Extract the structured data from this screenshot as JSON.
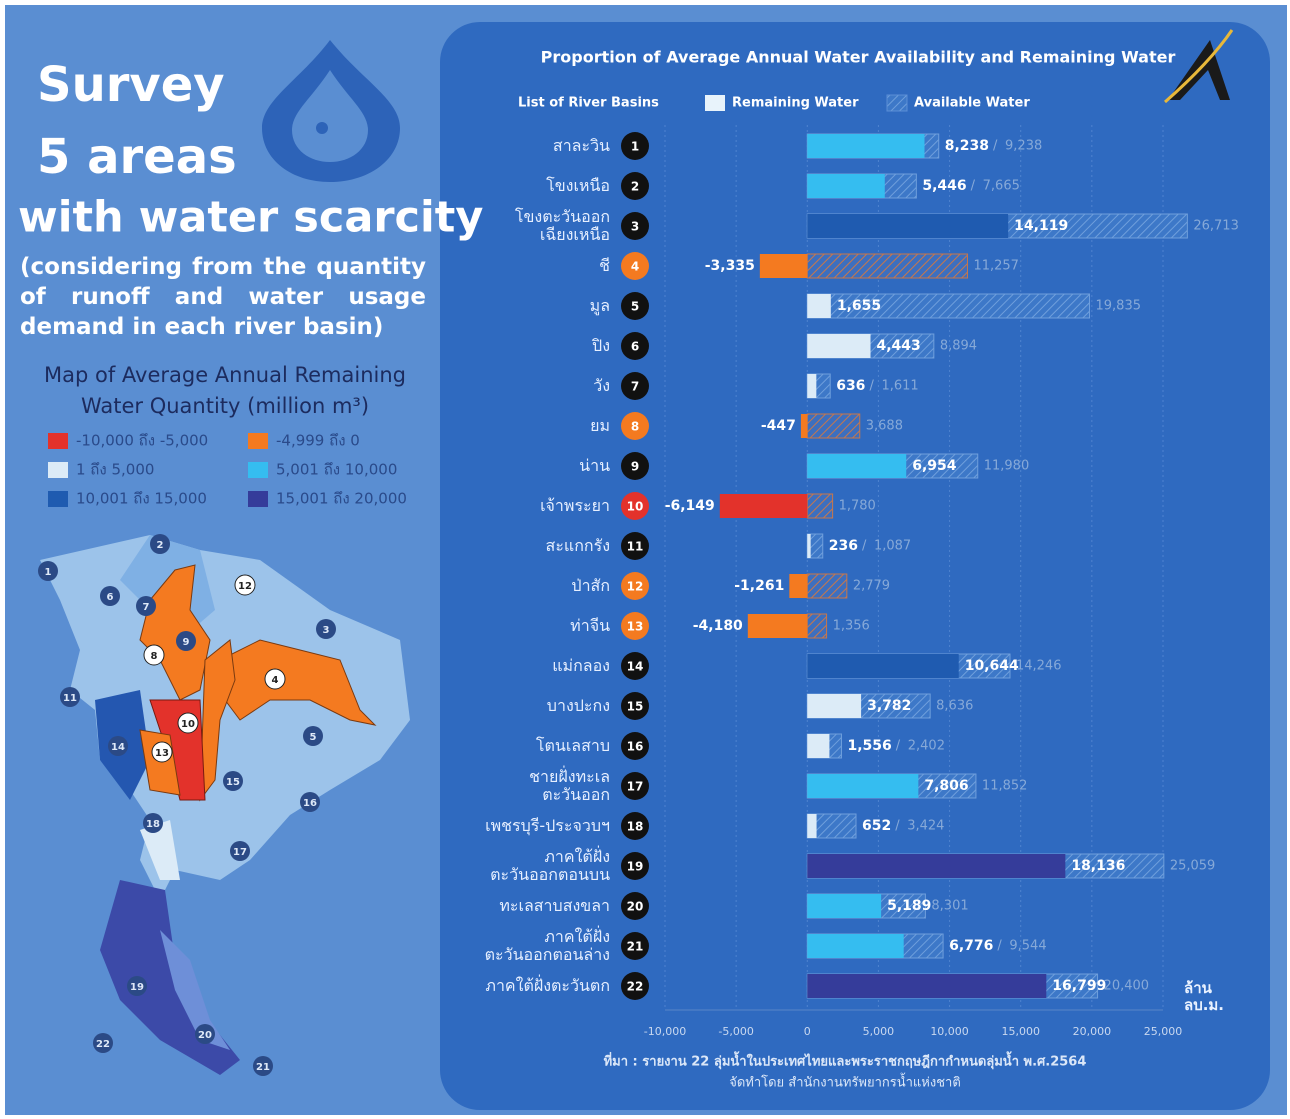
{
  "left": {
    "title_lines": [
      "Survey",
      "5 areas",
      "with water scarcity"
    ],
    "description": "(considering from the quantity of runoff and water usage demand in each river basin)",
    "map_title": "Map of Average Annual Remaining Water Quantity (million m³)",
    "map_legend": [
      {
        "label": "-10,000 ถึง -5,000",
        "color": "#e3322b"
      },
      {
        "label": "-4,999 ถึง 0",
        "color": "#f47a20"
      },
      {
        "label": "1 ถึง 5,000",
        "color": "#dcebf7"
      },
      {
        "label": "5,001 ถึง 10,000",
        "color": "#35bdf0"
      },
      {
        "label": "10,001 ถึง 15,000",
        "color": "#1f5bb0"
      },
      {
        "label": "15,001 ถึง 20,000",
        "color": "#353c9a"
      }
    ],
    "map_labels": [
      "1",
      "2",
      "3",
      "4",
      "5",
      "6",
      "7",
      "8",
      "9",
      "10",
      "11",
      "12",
      "13",
      "14",
      "15",
      "16",
      "17",
      "18",
      "19",
      "20",
      "21",
      "22"
    ]
  },
  "chart_data": {
    "type": "bar",
    "orientation": "horizontal",
    "title": "Proportion of Average Annual Water Availability and Remaining Water",
    "category_header": "List of River Basins",
    "categories": [
      "สาละวิน",
      "โขงเหนือ",
      "โขงตะวันออก\nเฉียงเหนือ",
      "ชี",
      "มูล",
      "ปิง",
      "วัง",
      "ยม",
      "น่าน",
      "เจ้าพระยา",
      "สะแกกรัง",
      "ป่าสัก",
      "ท่าจีน",
      "แม่กลอง",
      "บางปะกง",
      "โตนเลสาบ",
      "ชายฝั่งทะเล\nตะวันออก",
      "เพชรบุรี-ประจวบฯ",
      "ภาคใต้ฝั่ง\nตะวันออกตอนบน",
      "ทะเลสาบสงขลา",
      "ภาคใต้ฝั่ง\nตะวันออกตอนล่าง",
      "ภาคใต้ฝั่งตะวันตก"
    ],
    "basin_numbers": [
      "1",
      "2",
      "3",
      "4",
      "5",
      "6",
      "7",
      "8",
      "9",
      "10",
      "11",
      "12",
      "13",
      "14",
      "15",
      "16",
      "17",
      "18",
      "19",
      "20",
      "21",
      "22"
    ],
    "series": [
      {
        "name": "Remaining Water",
        "color": "#e8f3fb",
        "values": [
          8238,
          5446,
          14119,
          -3335,
          1655,
          4443,
          636,
          -447,
          6954,
          -6149,
          236,
          -1261,
          -4180,
          10644,
          3782,
          1556,
          7806,
          652,
          18136,
          5189,
          6776,
          16799
        ],
        "value_labels": [
          "8,238",
          "5,446",
          "14,119",
          "-3,335",
          "1,655",
          "4,443",
          "636",
          "-447",
          "6,954",
          "-6,149",
          "236",
          "-1,261",
          "-4,180",
          "10,644",
          "3,782",
          "1,556",
          "7,806",
          "652",
          "18,136",
          "5,189",
          "6,776",
          "16,799"
        ],
        "colors": [
          "#35bdf0",
          "#35bdf0",
          "#1f5bb0",
          "#f47a20",
          "#dcebf7",
          "#dcebf7",
          "#dcebf7",
          "#f47a20",
          "#35bdf0",
          "#e3322b",
          "#dcebf7",
          "#f47a20",
          "#f47a20",
          "#1f5bb0",
          "#dcebf7",
          "#dcebf7",
          "#35bdf0",
          "#dcebf7",
          "#353c9a",
          "#35bdf0",
          "#35bdf0",
          "#353c9a"
        ]
      },
      {
        "name": "Available Water",
        "color": "#5b8fd6",
        "values": [
          9238,
          7665,
          26713,
          11257,
          19835,
          8894,
          1611,
          3688,
          11980,
          1780,
          1087,
          2779,
          1356,
          14246,
          8636,
          2402,
          11852,
          3424,
          25059,
          8301,
          9544,
          20400
        ],
        "value_labels": [
          "9,238",
          "7,665",
          "26,713",
          "11,257",
          "19,835",
          "8,894",
          "1,611",
          "3,688",
          "11,980",
          "1,780",
          "1,087",
          "2,779",
          "1,356",
          "14,246",
          "8,636",
          "2,402",
          "11,852",
          "3,424",
          "25,059",
          "8,301",
          "9,544",
          "20,400"
        ]
      }
    ],
    "separator": "/",
    "xlim": [
      -10000,
      25000
    ],
    "xticks": [
      {
        "value": -10000,
        "label": "-10,000"
      },
      {
        "value": -5000,
        "label": "-5,000"
      },
      0,
      {
        "value": 5000,
        "label": "5,000"
      },
      {
        "value": 10000,
        "label": "10,000"
      },
      {
        "value": 15000,
        "label": "15,000"
      },
      {
        "value": 20000,
        "label": "20,000"
      },
      {
        "value": 25000,
        "label": "25,000"
      }
    ],
    "grid": true,
    "unit": "ล้าน\nลบ.ม.",
    "source": [
      "ที่มา : รายงาน 22 ลุ่มน้ำในประเทศไทยและพระราชกฤษฎีกากำหนดลุ่มน้ำ พ.ศ.2564",
      "จัดทำโดย สำนักงานทรัพยากรน้ำแห่งชาติ"
    ]
  }
}
